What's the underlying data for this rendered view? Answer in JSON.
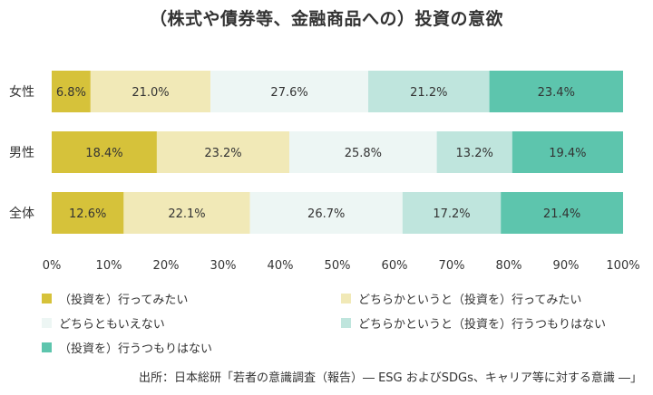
{
  "chart_data": {
    "type": "bar",
    "orientation": "horizontal",
    "stacked": true,
    "normalized": true,
    "title": "（株式や債券等、金融商品への）投資の意欲",
    "categories": [
      "女性",
      "男性",
      "全体"
    ],
    "series": [
      {
        "name": "（投資を）行ってみたい",
        "color": "#d6c23a",
        "values": [
          6.8,
          18.4,
          12.6
        ]
      },
      {
        "name": "どちらかというと（投資を）行ってみたい",
        "color": "#f1e9b7",
        "values": [
          21.0,
          23.2,
          22.1
        ]
      },
      {
        "name": "どちらともいえない",
        "color": "#edf6f4",
        "values": [
          27.6,
          25.8,
          26.7
        ]
      },
      {
        "name": "どちらかというと（投資を）行うつもりはない",
        "color": "#bfe5dd",
        "values": [
          21.2,
          13.2,
          17.2
        ]
      },
      {
        "name": "（投資を）行うつもりはない",
        "color": "#5dc5ad",
        "values": [
          23.4,
          19.4,
          21.4
        ]
      }
    ],
    "value_suffix": "%",
    "xlim": [
      0,
      100
    ],
    "xticks": [
      "0%",
      "10%",
      "20%",
      "30%",
      "40%",
      "50%",
      "60%",
      "70%",
      "80%",
      "90%",
      "100%"
    ],
    "grid": false,
    "legend_position": "bottom"
  },
  "source_note": "出所：日本総研「若者の意識調査（報告）― ESG およびSDGs、キャリア等に対する意識 ―」"
}
